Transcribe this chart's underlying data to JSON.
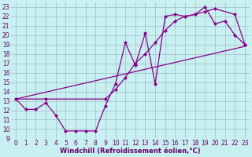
{
  "bg_color": "#c8f0f0",
  "grid_color": "#a0b8c8",
  "line_color": "#880088",
  "xlim": [
    -0.5,
    23.5
  ],
  "ylim": [
    9,
    23.5
  ],
  "xticks": [
    0,
    1,
    2,
    3,
    4,
    5,
    6,
    7,
    8,
    9,
    10,
    11,
    12,
    13,
    14,
    15,
    16,
    17,
    18,
    19,
    20,
    21,
    22,
    23
  ],
  "yticks": [
    9,
    10,
    11,
    12,
    13,
    14,
    15,
    16,
    17,
    18,
    19,
    20,
    21,
    22,
    23
  ],
  "xlabel": "Windchill (Refroidissement éolien,°C)",
  "line1_x": [
    0,
    1,
    2,
    3,
    4,
    5,
    6,
    7,
    8,
    9,
    10,
    11,
    12,
    13,
    14,
    15,
    16,
    17,
    18,
    19,
    20,
    21,
    22,
    23
  ],
  "line1_y": [
    13.2,
    12.1,
    12.1,
    12.8,
    11.5,
    9.8,
    9.8,
    9.8,
    9.8,
    12.5,
    14.8,
    19.2,
    16.8,
    20.2,
    14.8,
    22.0,
    22.2,
    22.0,
    22.2,
    23.0,
    21.2,
    21.5,
    20.0,
    19.0
  ],
  "line2_x": [
    0,
    3,
    9,
    10,
    11,
    12,
    13,
    14,
    15,
    16,
    17,
    18,
    19,
    20,
    22,
    23
  ],
  "line2_y": [
    13.2,
    13.2,
    13.2,
    14.2,
    15.5,
    17.0,
    18.0,
    19.2,
    20.5,
    21.5,
    22.0,
    22.2,
    22.5,
    22.8,
    22.2,
    19.0
  ],
  "line3_x": [
    0,
    23
  ],
  "line3_y": [
    13.2,
    18.8
  ],
  "tick_color": "#660066",
  "tick_fontsize": 5.5,
  "xlabel_fontsize": 6.0
}
